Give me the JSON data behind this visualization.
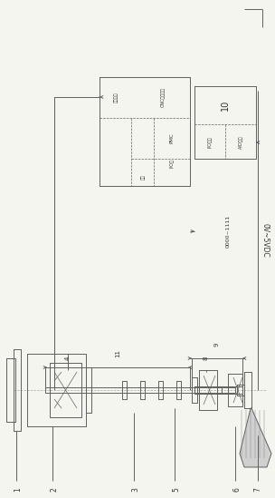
{
  "bg_color": "#f5f5f0",
  "line_color": "#606060",
  "line_color2": "#888888",
  "fig_width": 3.04,
  "fig_height": 5.49,
  "dpi": 100,
  "labels": {
    "voltage": "0V~5VDC",
    "box10": "10",
    "ad": "A/D接口",
    "io": "I/O接口",
    "digital": "0000~1111",
    "cnc": "CNC数控系统",
    "pmc": "PMC",
    "io_port": "I/O口",
    "port": "接口",
    "servo": "伺服系统",
    "n1": "1",
    "n2": "2",
    "n3": "3",
    "n4": "4",
    "n5": "5",
    "n6": "6",
    "n7": "7",
    "n8": "8",
    "n9": "9",
    "n10": "10",
    "n11": "11"
  }
}
